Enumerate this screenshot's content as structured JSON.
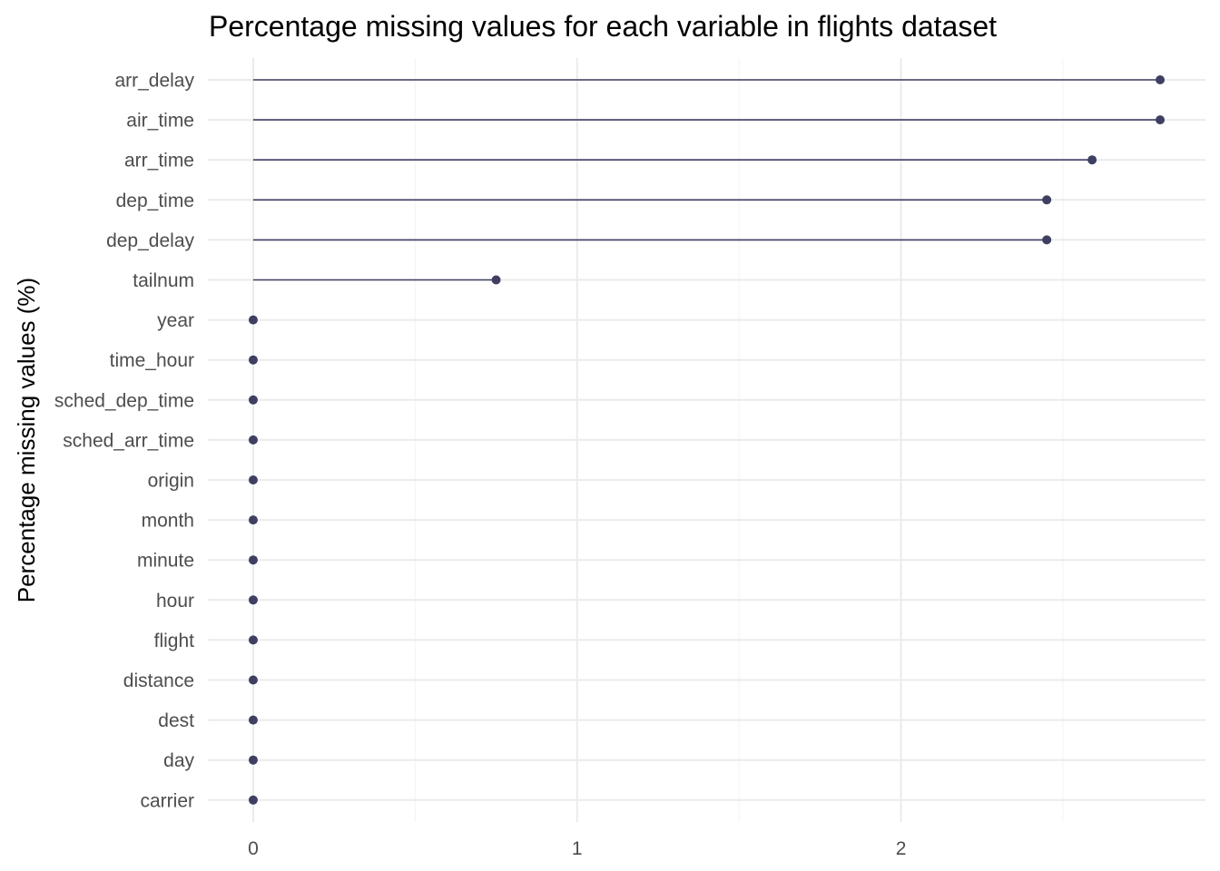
{
  "chart_data": {
    "type": "lollipop",
    "title": "Percentage missing values for each variable in flights dataset",
    "xlabel": "",
    "ylabel": "Percentage missing values (%)",
    "xlim": [
      -0.14,
      2.94
    ],
    "x_ticks": [
      0,
      1,
      2
    ],
    "x_tick_labels": [
      "0",
      "1",
      "2"
    ],
    "grid": true,
    "color": "#3f3f63",
    "categories": [
      "arr_delay",
      "air_time",
      "arr_time",
      "dep_time",
      "dep_delay",
      "tailnum",
      "year",
      "time_hour",
      "sched_dep_time",
      "sched_arr_time",
      "origin",
      "month",
      "minute",
      "hour",
      "flight",
      "distance",
      "dest",
      "day",
      "carrier"
    ],
    "values": [
      2.8,
      2.8,
      2.59,
      2.45,
      2.45,
      0.75,
      0,
      0,
      0,
      0,
      0,
      0,
      0,
      0,
      0,
      0,
      0,
      0,
      0
    ]
  }
}
